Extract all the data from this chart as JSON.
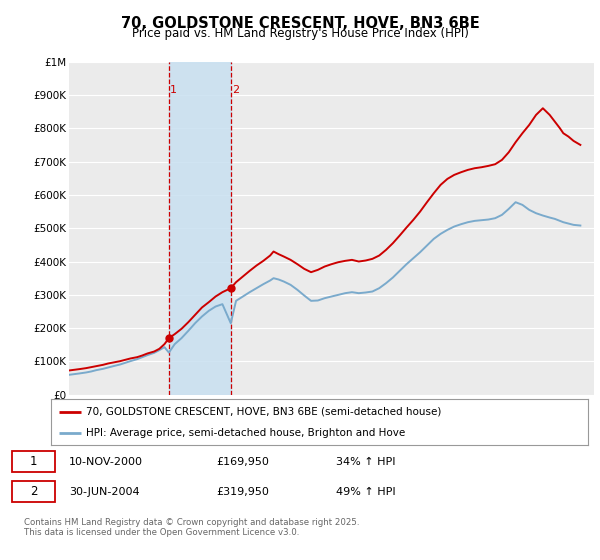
{
  "title": "70, GOLDSTONE CRESCENT, HOVE, BN3 6BE",
  "subtitle": "Price paid vs. HM Land Registry's House Price Index (HPI)",
  "ylim": [
    0,
    1000000
  ],
  "yticks": [
    0,
    100000,
    200000,
    300000,
    400000,
    500000,
    600000,
    700000,
    800000,
    900000,
    1000000
  ],
  "ytick_labels": [
    "£0",
    "£100K",
    "£200K",
    "£300K",
    "£400K",
    "£500K",
    "£600K",
    "£700K",
    "£800K",
    "£900K",
    "£1M"
  ],
  "xlim_start": 1995.0,
  "xlim_end": 2025.8,
  "background_color": "#ffffff",
  "plot_bg_color": "#ebebeb",
  "grid_color": "#ffffff",
  "red_line_color": "#cc0000",
  "blue_line_color": "#7aaacc",
  "transaction1_x": 2000.86,
  "transaction1_y": 169950,
  "transaction2_x": 2004.49,
  "transaction2_y": 319950,
  "shade_x1": 2000.86,
  "shade_x2": 2004.49,
  "shade_color": "#c8e0f0",
  "legend_red": "70, GOLDSTONE CRESCENT, HOVE, BN3 6BE (semi-detached house)",
  "legend_blue": "HPI: Average price, semi-detached house, Brighton and Hove",
  "table_rows": [
    {
      "num": "1",
      "date": "10-NOV-2000",
      "price": "£169,950",
      "hpi": "34% ↑ HPI"
    },
    {
      "num": "2",
      "date": "30-JUN-2004",
      "price": "£319,950",
      "hpi": "49% ↑ HPI"
    }
  ],
  "footer": "Contains HM Land Registry data © Crown copyright and database right 2025.\nThis data is licensed under the Open Government Licence v3.0.",
  "red_line_x": [
    1995.0,
    1995.3,
    1995.6,
    1996.0,
    1996.3,
    1996.6,
    1997.0,
    1997.3,
    1997.6,
    1998.0,
    1998.3,
    1998.6,
    1999.0,
    1999.3,
    1999.6,
    2000.0,
    2000.3,
    2000.6,
    2000.86,
    2001.2,
    2001.6,
    2002.0,
    2002.4,
    2002.8,
    2003.2,
    2003.6,
    2004.0,
    2004.49,
    2004.8,
    2005.2,
    2005.6,
    2006.0,
    2006.4,
    2006.8,
    2007.0,
    2007.3,
    2007.6,
    2008.0,
    2008.4,
    2008.8,
    2009.2,
    2009.6,
    2010.0,
    2010.4,
    2010.8,
    2011.2,
    2011.6,
    2012.0,
    2012.4,
    2012.8,
    2013.2,
    2013.6,
    2014.0,
    2014.4,
    2014.8,
    2015.2,
    2015.6,
    2016.0,
    2016.4,
    2016.8,
    2017.2,
    2017.6,
    2018.0,
    2018.4,
    2018.8,
    2019.2,
    2019.6,
    2020.0,
    2020.4,
    2020.8,
    2021.2,
    2021.6,
    2022.0,
    2022.4,
    2022.8,
    2023.2,
    2023.5,
    2023.8,
    2024.0,
    2024.3,
    2024.6,
    2025.0
  ],
  "red_line_y": [
    73000,
    75000,
    77000,
    80000,
    83000,
    86000,
    90000,
    94000,
    97000,
    101000,
    105000,
    109000,
    113000,
    118000,
    124000,
    130000,
    138000,
    152000,
    169950,
    182000,
    198000,
    218000,
    240000,
    262000,
    278000,
    295000,
    308000,
    319950,
    338000,
    355000,
    372000,
    388000,
    402000,
    418000,
    430000,
    422000,
    415000,
    405000,
    392000,
    378000,
    368000,
    375000,
    385000,
    392000,
    398000,
    402000,
    405000,
    400000,
    403000,
    408000,
    418000,
    435000,
    455000,
    478000,
    502000,
    525000,
    550000,
    578000,
    605000,
    630000,
    648000,
    660000,
    668000,
    675000,
    680000,
    683000,
    687000,
    692000,
    705000,
    728000,
    758000,
    785000,
    810000,
    840000,
    860000,
    840000,
    820000,
    800000,
    785000,
    775000,
    762000,
    750000
  ],
  "blue_line_x": [
    1995.0,
    1995.3,
    1995.6,
    1996.0,
    1996.3,
    1996.6,
    1997.0,
    1997.3,
    1997.6,
    1998.0,
    1998.3,
    1998.6,
    1999.0,
    1999.3,
    1999.6,
    2000.0,
    2000.3,
    2000.6,
    2000.86,
    2001.2,
    2001.6,
    2002.0,
    2002.4,
    2002.8,
    2003.2,
    2003.6,
    2004.0,
    2004.49,
    2004.8,
    2005.2,
    2005.6,
    2006.0,
    2006.4,
    2006.8,
    2007.0,
    2007.3,
    2007.6,
    2008.0,
    2008.4,
    2008.8,
    2009.2,
    2009.6,
    2010.0,
    2010.4,
    2010.8,
    2011.2,
    2011.6,
    2012.0,
    2012.4,
    2012.8,
    2013.2,
    2013.6,
    2014.0,
    2014.4,
    2014.8,
    2015.2,
    2015.6,
    2016.0,
    2016.4,
    2016.8,
    2017.2,
    2017.6,
    2018.0,
    2018.4,
    2018.8,
    2019.2,
    2019.6,
    2020.0,
    2020.4,
    2020.8,
    2021.2,
    2021.6,
    2022.0,
    2022.4,
    2022.8,
    2023.2,
    2023.5,
    2023.8,
    2024.0,
    2024.3,
    2024.6,
    2025.0
  ],
  "blue_line_y": [
    60000,
    62000,
    64000,
    67000,
    70000,
    74000,
    78000,
    82000,
    86000,
    91000,
    96000,
    101000,
    107000,
    113000,
    119000,
    126000,
    134000,
    143000,
    126700,
    152000,
    170000,
    192000,
    215000,
    235000,
    252000,
    265000,
    272000,
    214800,
    282000,
    295000,
    308000,
    320000,
    332000,
    343000,
    350000,
    346000,
    340000,
    330000,
    315000,
    298000,
    282000,
    283000,
    290000,
    295000,
    300000,
    305000,
    308000,
    305000,
    307000,
    310000,
    320000,
    335000,
    352000,
    372000,
    392000,
    410000,
    428000,
    448000,
    468000,
    483000,
    495000,
    505000,
    512000,
    518000,
    522000,
    524000,
    526000,
    530000,
    540000,
    558000,
    578000,
    570000,
    555000,
    545000,
    538000,
    532000,
    528000,
    522000,
    518000,
    514000,
    510000,
    508000
  ]
}
